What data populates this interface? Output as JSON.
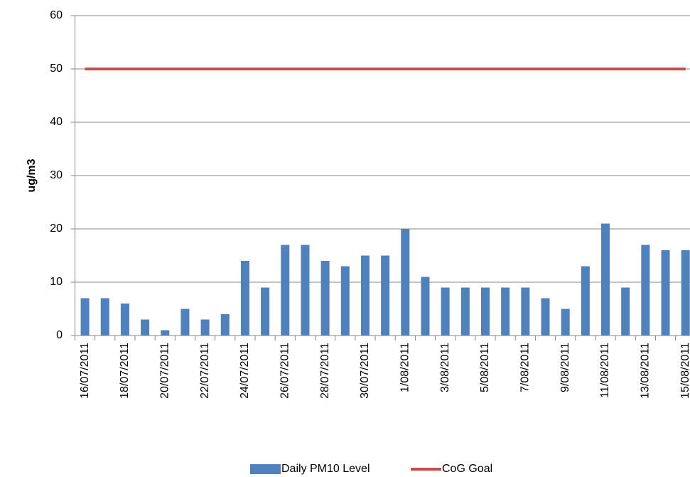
{
  "chart_data": {
    "type": "bar",
    "y_label": "ug/m3",
    "categories": [
      "16/07/2011",
      null,
      "18/07/2011",
      null,
      "20/07/2011",
      null,
      "22/07/2011",
      null,
      "24/07/2011",
      null,
      "26/07/2011",
      null,
      "28/07/2011",
      null,
      "30/07/2011",
      null,
      "1/08/2011",
      null,
      "3/08/2011",
      null,
      "5/08/2011",
      null,
      "7/08/2011",
      null,
      "9/08/2011",
      null,
      "11/08/2011",
      null,
      "13/08/2011",
      null,
      "15/08/2011"
    ],
    "series": [
      {
        "name": "Daily PM10 Level",
        "type": "bar",
        "color": "#4f81bd",
        "values": [
          7,
          7,
          6,
          3,
          1,
          5,
          3,
          4,
          14,
          9,
          17,
          17,
          14,
          13,
          15,
          15,
          20,
          11,
          9,
          9,
          9,
          9,
          9,
          7,
          5,
          13,
          21,
          9,
          17,
          16,
          16
        ]
      },
      {
        "name": "CoG Goal",
        "type": "line",
        "color": "#c0504d",
        "values": [
          50,
          50,
          50,
          50,
          50,
          50,
          50,
          50,
          50,
          50,
          50,
          50,
          50,
          50,
          50,
          50,
          50,
          50,
          50,
          50,
          50,
          50,
          50,
          50,
          50,
          50,
          50,
          50,
          50,
          50,
          50
        ]
      }
    ],
    "ylim": [
      0,
      60
    ],
    "yticks": [
      0,
      10,
      20,
      30,
      40,
      50,
      60
    ],
    "grid": true,
    "legend": "bottom"
  }
}
